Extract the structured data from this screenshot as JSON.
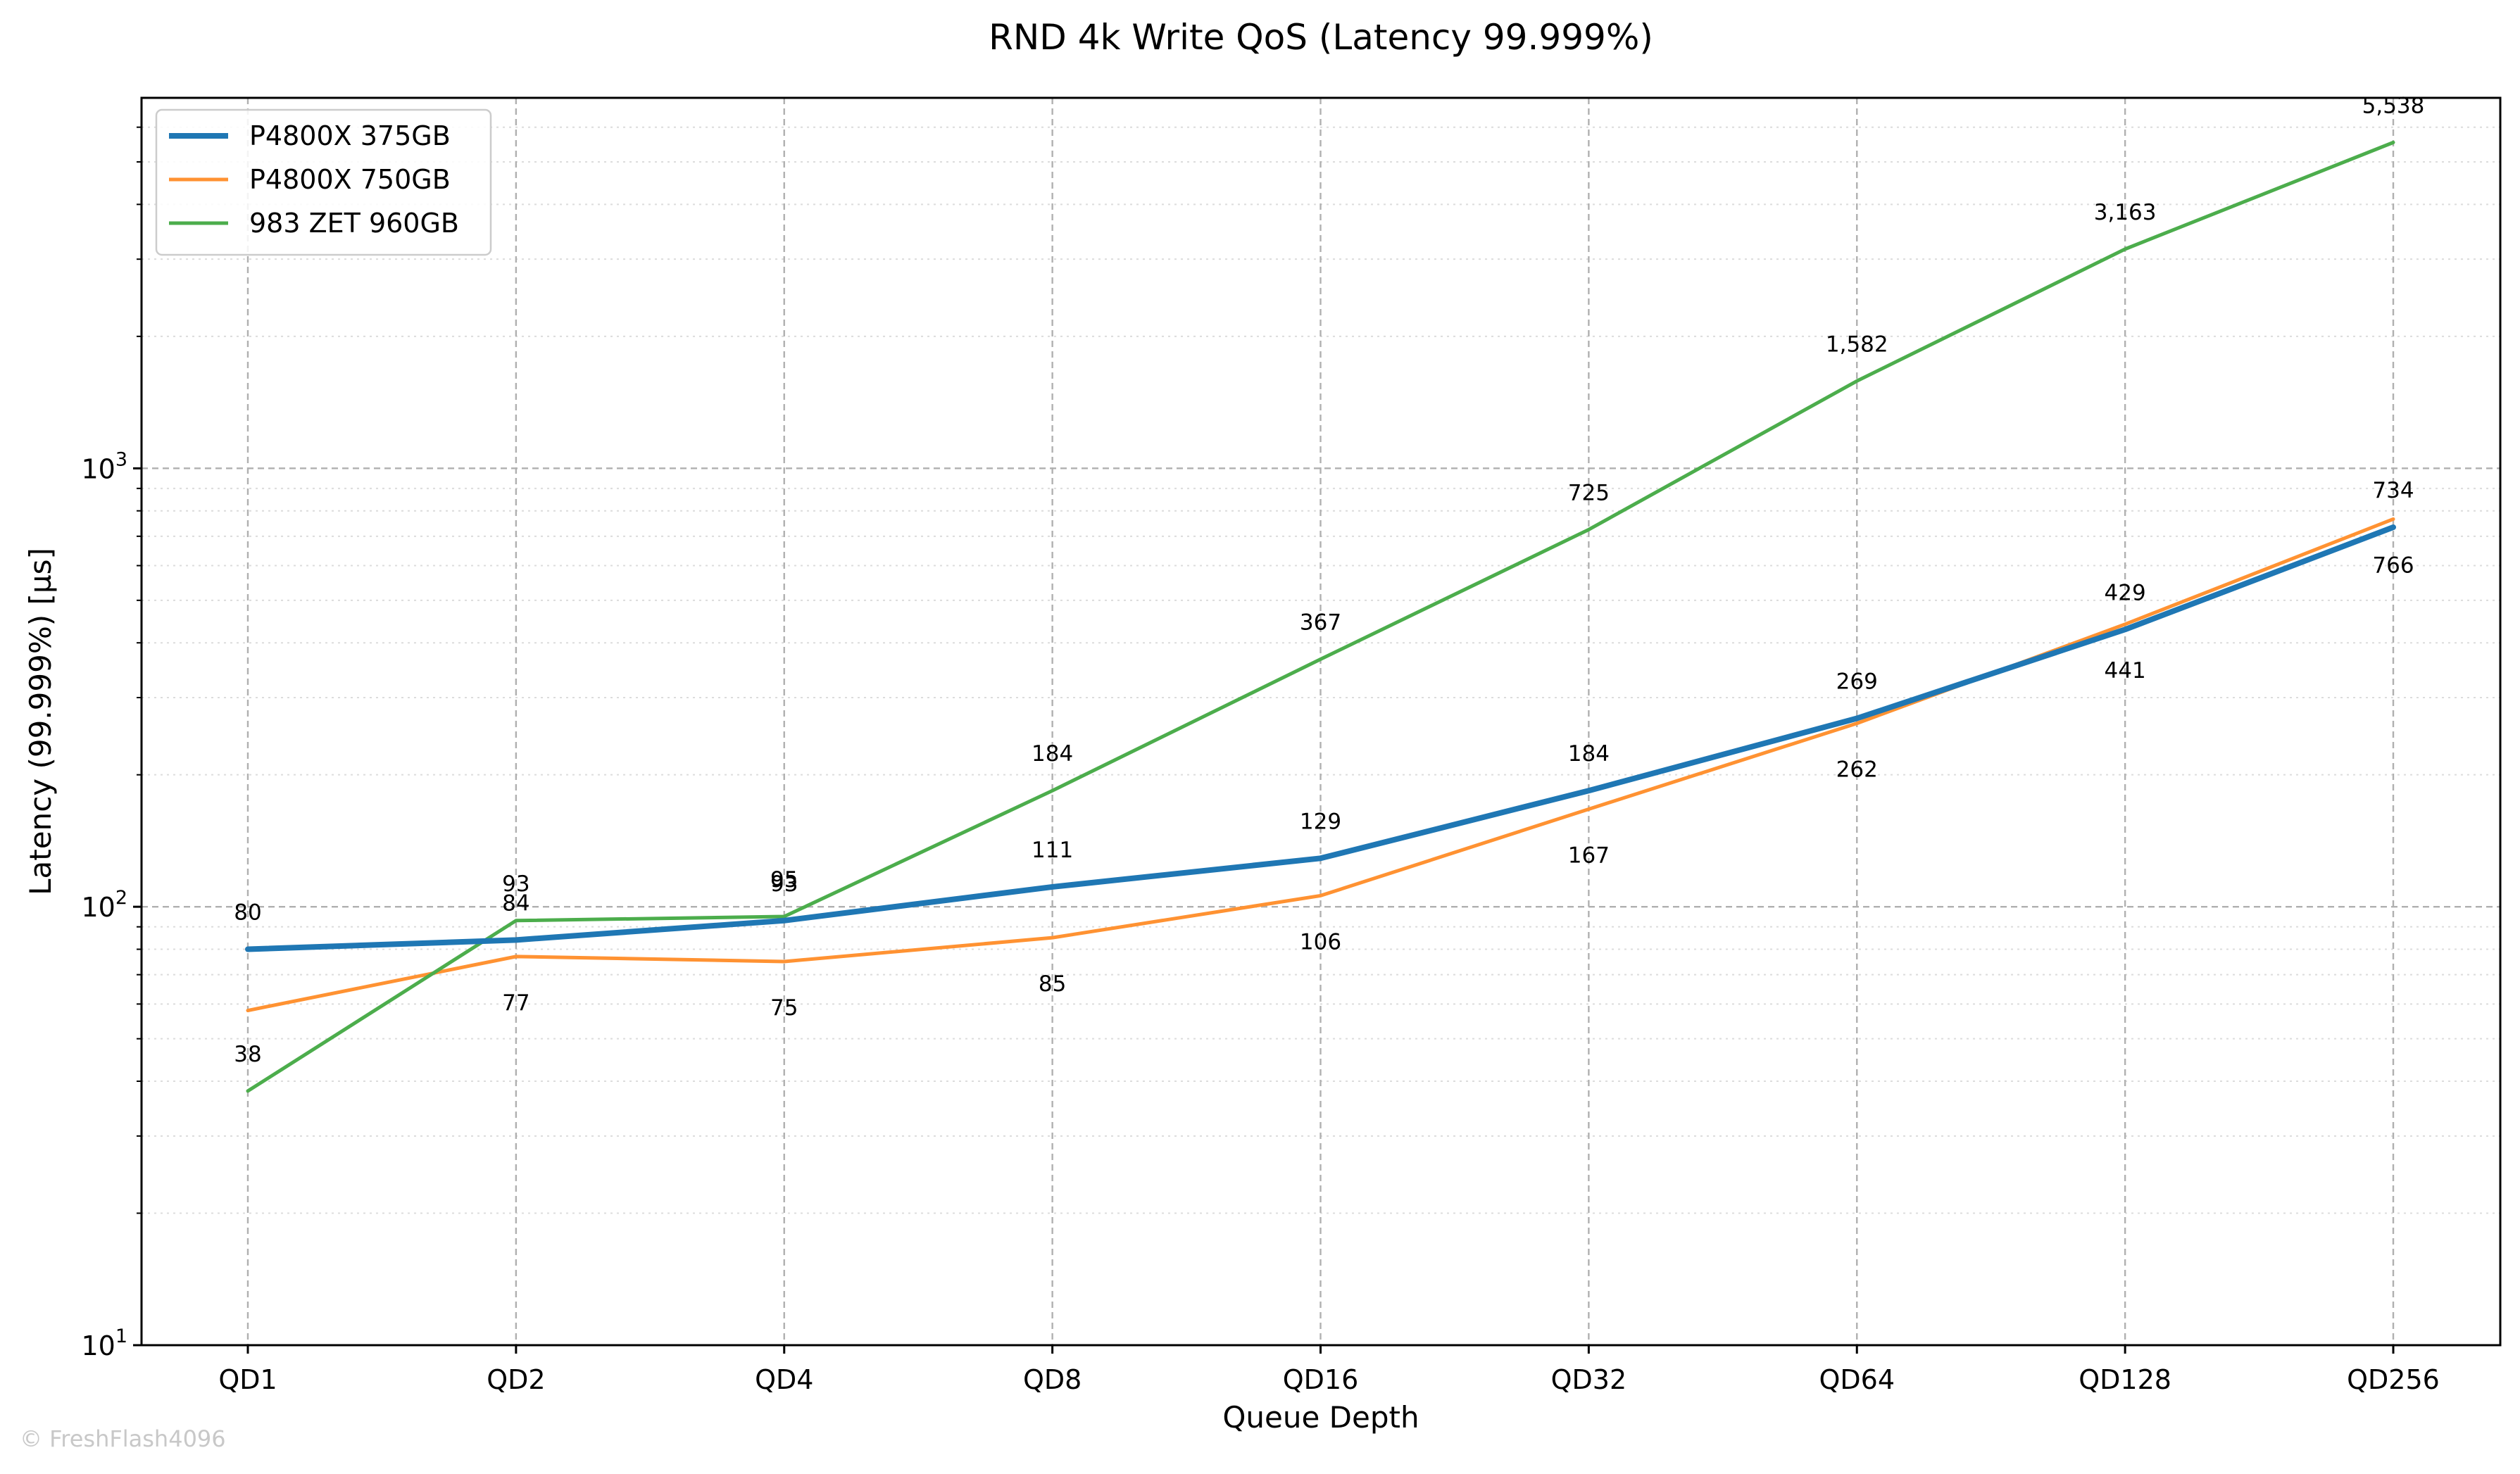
{
  "chart_data": {
    "type": "line",
    "title": "RND 4k Write QoS (Latency 99.999%)",
    "xlabel": "Queue Depth",
    "ylabel": "Latency (99.999%) [µs]",
    "yscale": "log",
    "ylim": [
      10,
      7000
    ],
    "grid": true,
    "legend_position": "top-left",
    "categories": [
      "QD1",
      "QD2",
      "QD4",
      "QD8",
      "QD16",
      "QD32",
      "QD64",
      "QD128",
      "QD256"
    ],
    "y_ticks": [
      {
        "base": "10",
        "exp": "1",
        "value": 10
      },
      {
        "base": "10",
        "exp": "2",
        "value": 100
      },
      {
        "base": "10",
        "exp": "3",
        "value": 1000
      }
    ],
    "series": [
      {
        "name": "P4800X 375GB",
        "color": "#1f77b4",
        "width": 8,
        "values": [
          80,
          84,
          93,
          111,
          129,
          184,
          269,
          429,
          734
        ],
        "labels": [
          "80",
          "84",
          "93",
          "111",
          "129",
          "184",
          "269",
          "429",
          "734"
        ],
        "label_pos": [
          "above",
          "above",
          "above",
          "above",
          "above",
          "above",
          "above",
          "above",
          "above"
        ]
      },
      {
        "name": "P4800X 750GB",
        "color": "#ff9232",
        "width": 5,
        "values": [
          58,
          77,
          75,
          85,
          106,
          167,
          262,
          441,
          766
        ],
        "labels": [
          "",
          "77",
          "75",
          "85",
          "106",
          "167",
          "262",
          "441",
          "766"
        ],
        "label_pos": [
          "below",
          "below",
          "below",
          "below",
          "below",
          "below",
          "below",
          "below",
          "below"
        ]
      },
      {
        "name": "983 ZET 960GB",
        "color": "#4cad4c",
        "width": 5,
        "values": [
          38,
          93,
          95,
          184,
          367,
          725,
          1582,
          3163,
          5538
        ],
        "labels": [
          "38",
          "93",
          "95",
          "184",
          "367",
          "725",
          "1,582",
          "3,163",
          "5,538"
        ],
        "label_pos": [
          "above",
          "above",
          "above",
          "above",
          "above",
          "above",
          "above",
          "above",
          "above"
        ]
      }
    ]
  },
  "watermark": "© FreshFlash4096"
}
